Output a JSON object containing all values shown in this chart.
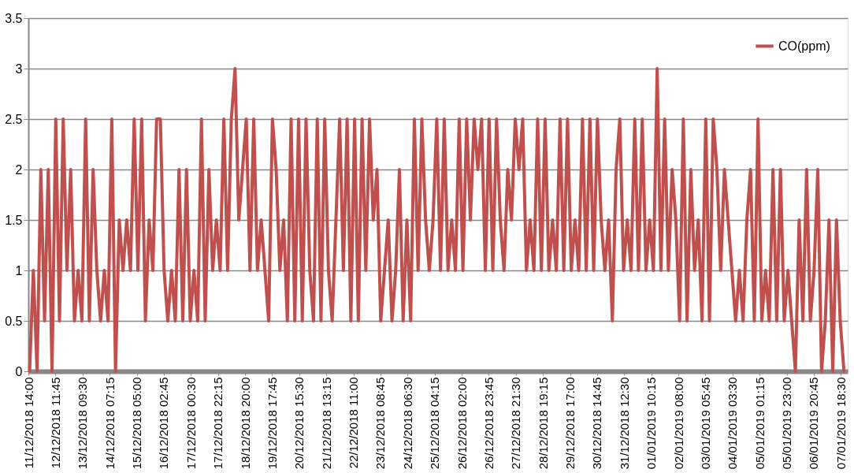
{
  "chart_data": {
    "type": "line",
    "x": [
      "2018-12-11T15:00",
      "2018-12-11T18:00",
      "2018-12-11T21:00",
      "2018-12-12T00:00",
      "2018-12-12T03:00",
      "2018-12-12T06:00",
      "2018-12-12T09:00",
      "2018-12-12T12:00",
      "2018-12-12T15:00",
      "2018-12-12T18:00",
      "2018-12-12T21:00",
      "2018-12-13T00:00",
      "2018-12-13T03:00",
      "2018-12-13T06:00",
      "2018-12-13T09:00",
      "2018-12-13T12:00",
      "2018-12-13T15:00",
      "2018-12-13T18:00",
      "2018-12-13T21:00",
      "2018-12-14T00:00",
      "2018-12-14T03:00",
      "2018-12-14T06:00",
      "2018-12-14T09:00",
      "2018-12-14T12:00",
      "2018-12-14T15:00",
      "2018-12-14T18:00",
      "2018-12-14T21:00",
      "2018-12-15T00:00",
      "2018-12-15T03:00",
      "2018-12-15T06:00",
      "2018-12-15T09:00",
      "2018-12-15T12:00",
      "2018-12-15T15:00",
      "2018-12-15T18:00",
      "2018-12-15T21:00",
      "2018-12-16T00:00",
      "2018-12-16T03:00",
      "2018-12-16T06:00",
      "2018-12-16T09:00",
      "2018-12-16T12:00",
      "2018-12-16T15:00",
      "2018-12-16T18:00",
      "2018-12-16T21:00",
      "2018-12-17T00:00",
      "2018-12-17T03:00",
      "2018-12-17T06:00",
      "2018-12-17T09:00",
      "2018-12-17T12:00",
      "2018-12-17T15:00",
      "2018-12-17T18:00",
      "2018-12-17T21:00",
      "2018-12-18T00:00",
      "2018-12-18T03:00",
      "2018-12-18T06:00",
      "2018-12-18T09:00",
      "2018-12-18T12:00",
      "2018-12-18T15:00",
      "2018-12-18T18:00",
      "2018-12-18T21:00",
      "2018-12-19T00:00",
      "2018-12-19T03:00",
      "2018-12-19T06:00",
      "2018-12-19T09:00",
      "2018-12-19T12:00",
      "2018-12-19T15:00",
      "2018-12-19T18:00",
      "2018-12-19T21:00",
      "2018-12-20T00:00",
      "2018-12-20T03:00",
      "2018-12-20T06:00",
      "2018-12-20T09:00",
      "2018-12-20T12:00",
      "2018-12-20T15:00",
      "2018-12-20T18:00",
      "2018-12-20T21:00",
      "2018-12-21T00:00",
      "2018-12-21T03:00",
      "2018-12-21T06:00",
      "2018-12-21T09:00",
      "2018-12-21T12:00",
      "2018-12-21T15:00",
      "2018-12-21T18:00",
      "2018-12-21T21:00",
      "2018-12-22T00:00",
      "2018-12-22T03:00",
      "2018-12-22T06:00",
      "2018-12-22T09:00",
      "2018-12-22T12:00",
      "2018-12-22T15:00",
      "2018-12-22T18:00",
      "2018-12-22T21:00",
      "2018-12-23T00:00",
      "2018-12-23T03:00",
      "2018-12-23T06:00",
      "2018-12-23T09:00",
      "2018-12-23T12:00",
      "2018-12-23T15:00",
      "2018-12-23T18:00",
      "2018-12-23T21:00",
      "2018-12-24T00:00",
      "2018-12-24T03:00",
      "2018-12-24T06:00",
      "2018-12-24T09:00",
      "2018-12-24T12:00",
      "2018-12-24T15:00",
      "2018-12-24T18:00",
      "2018-12-24T21:00",
      "2018-12-25T00:00",
      "2018-12-25T03:00",
      "2018-12-25T06:00",
      "2018-12-25T09:00",
      "2018-12-25T12:00",
      "2018-12-25T15:00",
      "2018-12-25T18:00",
      "2018-12-25T21:00",
      "2018-12-26T00:00",
      "2018-12-26T03:00",
      "2018-12-26T06:00",
      "2018-12-26T09:00",
      "2018-12-26T12:00",
      "2018-12-26T15:00",
      "2018-12-26T18:00",
      "2018-12-26T21:00",
      "2018-12-27T00:00",
      "2018-12-27T03:00",
      "2018-12-27T06:00",
      "2018-12-27T09:00",
      "2018-12-27T12:00",
      "2018-12-27T15:00",
      "2018-12-27T18:00",
      "2018-12-27T21:00",
      "2018-12-28T00:00",
      "2018-12-28T03:00",
      "2018-12-28T06:00",
      "2018-12-28T09:00",
      "2018-12-28T12:00",
      "2018-12-28T15:00",
      "2018-12-28T18:00",
      "2018-12-28T21:00",
      "2018-12-29T00:00",
      "2018-12-29T03:00",
      "2018-12-29T06:00",
      "2018-12-29T09:00",
      "2018-12-29T12:00",
      "2018-12-29T15:00",
      "2018-12-29T18:00",
      "2018-12-29T21:00",
      "2018-12-30T00:00",
      "2018-12-30T03:00",
      "2018-12-30T06:00",
      "2018-12-30T09:00",
      "2018-12-30T12:00",
      "2018-12-30T15:00",
      "2018-12-30T18:00",
      "2018-12-30T21:00",
      "2018-12-31T00:00",
      "2018-12-31T03:00",
      "2018-12-31T06:00",
      "2018-12-31T09:00",
      "2018-12-31T12:00",
      "2018-12-31T15:00",
      "2018-12-31T18:00",
      "2018-12-31T21:00",
      "2019-01-01T00:00",
      "2019-01-01T03:00",
      "2019-01-01T06:00",
      "2019-01-01T09:00",
      "2019-01-01T12:00",
      "2019-01-01T15:00",
      "2019-01-01T18:00",
      "2019-01-01T21:00",
      "2019-01-02T00:00",
      "2019-01-02T03:00",
      "2019-01-02T06:00",
      "2019-01-02T09:00",
      "2019-01-02T12:00",
      "2019-01-02T15:00",
      "2019-01-02T18:00",
      "2019-01-02T21:00",
      "2019-01-03T00:00",
      "2019-01-03T03:00",
      "2019-01-03T06:00",
      "2019-01-03T09:00",
      "2019-01-03T12:00",
      "2019-01-03T15:00",
      "2019-01-03T18:00",
      "2019-01-03T21:00",
      "2019-01-04T00:00",
      "2019-01-04T03:00",
      "2019-01-04T06:00",
      "2019-01-04T09:00",
      "2019-01-04T12:00",
      "2019-01-04T15:00",
      "2019-01-04T18:00",
      "2019-01-04T21:00",
      "2019-01-05T00:00",
      "2019-01-05T03:00",
      "2019-01-05T06:00",
      "2019-01-05T09:00",
      "2019-01-05T12:00",
      "2019-01-05T15:00",
      "2019-01-05T18:00",
      "2019-01-05T21:00",
      "2019-01-06T00:00",
      "2019-01-06T03:00",
      "2019-01-06T06:00",
      "2019-01-06T09:00",
      "2019-01-06T12:00",
      "2019-01-06T15:00",
      "2019-01-06T18:00",
      "2019-01-06T21:00",
      "2019-01-07T00:00",
      "2019-01-07T03:00",
      "2019-01-07T06:00",
      "2019-01-07T09:00",
      "2019-01-07T12:00",
      "2019-01-07T15:00",
      "2019-01-07T18:00",
      "2019-01-07T21:00"
    ],
    "series": [
      {
        "name": "CO(ppm)",
        "color": "#c0504d",
        "values": [
          0,
          1,
          0,
          2,
          0.5,
          2,
          0,
          2.5,
          0.5,
          2.5,
          1,
          2,
          0.5,
          1,
          0.5,
          2.5,
          0.5,
          2,
          1,
          0.5,
          1,
          0.5,
          2.5,
          0,
          1.5,
          1,
          1.5,
          1,
          2.5,
          1,
          2.5,
          0.5,
          1.5,
          1,
          2.5,
          2.5,
          1,
          0.5,
          1,
          0.5,
          2,
          0.5,
          2,
          0.5,
          1,
          0.5,
          2.5,
          0.5,
          2,
          1,
          1.5,
          1,
          2.5,
          1,
          2.5,
          3,
          1.5,
          2,
          2.5,
          1,
          2.5,
          1,
          1.5,
          1,
          0.5,
          2.5,
          2,
          1,
          1.5,
          0.5,
          2.5,
          0.5,
          2.5,
          0.5,
          2.5,
          1,
          0.5,
          2.5,
          0.5,
          2.5,
          1,
          0.5,
          1.5,
          2.5,
          1,
          2.5,
          0.5,
          2.5,
          0.5,
          2.5,
          1,
          2.5,
          1.5,
          2,
          0.5,
          1,
          1.5,
          0.5,
          1,
          2,
          0.5,
          1.5,
          0.5,
          2.5,
          1,
          2.5,
          1.5,
          1,
          1.5,
          2.5,
          1,
          2.5,
          1,
          1.5,
          1,
          2.5,
          1,
          2.5,
          1.5,
          2.5,
          2,
          2.5,
          1,
          2.5,
          1,
          2.5,
          1.5,
          1,
          2,
          1.5,
          2.5,
          2,
          2.5,
          1,
          1.5,
          1,
          2.5,
          1,
          2.5,
          1,
          1.5,
          1,
          2.5,
          1,
          2.5,
          1,
          1.5,
          1,
          2.5,
          1,
          2.5,
          1,
          2.5,
          1.5,
          1,
          1.5,
          0.5,
          2,
          2.5,
          1,
          1.5,
          1,
          2.5,
          1,
          2.5,
          1,
          1.5,
          1,
          3,
          1,
          2.5,
          1,
          2,
          1.5,
          0.5,
          2.5,
          0.5,
          2,
          1,
          1.5,
          0.5,
          2.5,
          0.5,
          2.5,
          2,
          1,
          2,
          1.5,
          1,
          0.5,
          1,
          0.5,
          1.5,
          2,
          0.5,
          2.5,
          0.5,
          1,
          0.5,
          2,
          0.5,
          2,
          0.5,
          1,
          0.5,
          0,
          1.5,
          0.5,
          2,
          0.5,
          1,
          2,
          0,
          0.5,
          1.5,
          0,
          1.5,
          0.5,
          0
        ]
      }
    ],
    "xlim": [
      "2018-12-11T14:00",
      "2019-01-08T00:00"
    ],
    "xticks": [
      {
        "value": "2018-12-11T14:00",
        "label": "11/12/2018 14:00"
      },
      {
        "value": "2018-12-12T11:45",
        "label": "12/12/2018 11:45"
      },
      {
        "value": "2018-12-13T09:30",
        "label": "13/12/2018 09:30"
      },
      {
        "value": "2018-12-14T07:15",
        "label": "14/12/2018 07:15"
      },
      {
        "value": "2018-12-15T05:00",
        "label": "15/12/2018 05:00"
      },
      {
        "value": "2018-12-16T02:45",
        "label": "16/12/2018 02:45"
      },
      {
        "value": "2018-12-17T00:30",
        "label": "17/12/2018 00:30"
      },
      {
        "value": "2018-12-17T22:15",
        "label": "17/12/2018 22:15"
      },
      {
        "value": "2018-12-18T20:00",
        "label": "18/12/2018 20:00"
      },
      {
        "value": "2018-12-19T17:45",
        "label": "19/12/2018 17:45"
      },
      {
        "value": "2018-12-20T15:30",
        "label": "20/12/2018 15:30"
      },
      {
        "value": "2018-12-21T13:15",
        "label": "21/12/2018 13:15"
      },
      {
        "value": "2018-12-22T11:00",
        "label": "22/12/2018 11:00"
      },
      {
        "value": "2018-12-23T08:45",
        "label": "23/12/2018 08:45"
      },
      {
        "value": "2018-12-24T06:30",
        "label": "24/12/2018 06:30"
      },
      {
        "value": "2018-12-25T04:15",
        "label": "25/12/2018 04:15"
      },
      {
        "value": "2018-12-26T02:00",
        "label": "26/12/2018 02:00"
      },
      {
        "value": "2018-12-26T23:45",
        "label": "26/12/2018 23:45"
      },
      {
        "value": "2018-12-27T21:30",
        "label": "27/12/2018 21:30"
      },
      {
        "value": "2018-12-28T19:15",
        "label": "28/12/2018 19:15"
      },
      {
        "value": "2018-12-29T17:00",
        "label": "29/12/2018 17:00"
      },
      {
        "value": "2018-12-30T14:45",
        "label": "30/12/2018 14:45"
      },
      {
        "value": "2018-12-31T12:30",
        "label": "31/12/2018 12:30"
      },
      {
        "value": "2019-01-01T10:15",
        "label": "01/01/2019 10:15"
      },
      {
        "value": "2019-01-02T08:00",
        "label": "02/01/2019 08:00"
      },
      {
        "value": "2019-01-03T05:45",
        "label": "03/01/2019 05:45"
      },
      {
        "value": "2019-01-04T03:30",
        "label": "04/01/2019 03:30"
      },
      {
        "value": "2019-01-05T01:15",
        "label": "05/01/2019 01:15"
      },
      {
        "value": "2019-01-05T23:00",
        "label": "05/01/2019 23:00"
      },
      {
        "value": "2019-01-06T20:45",
        "label": "06/01/2019 20:45"
      },
      {
        "value": "2019-01-07T18:30",
        "label": "07/01/2019 18:30"
      }
    ],
    "ylim": [
      0,
      3.5
    ],
    "yticks": [
      0,
      0.5,
      1,
      1.5,
      2,
      2.5,
      3,
      3.5
    ],
    "grid": "y",
    "legend": "top right"
  }
}
